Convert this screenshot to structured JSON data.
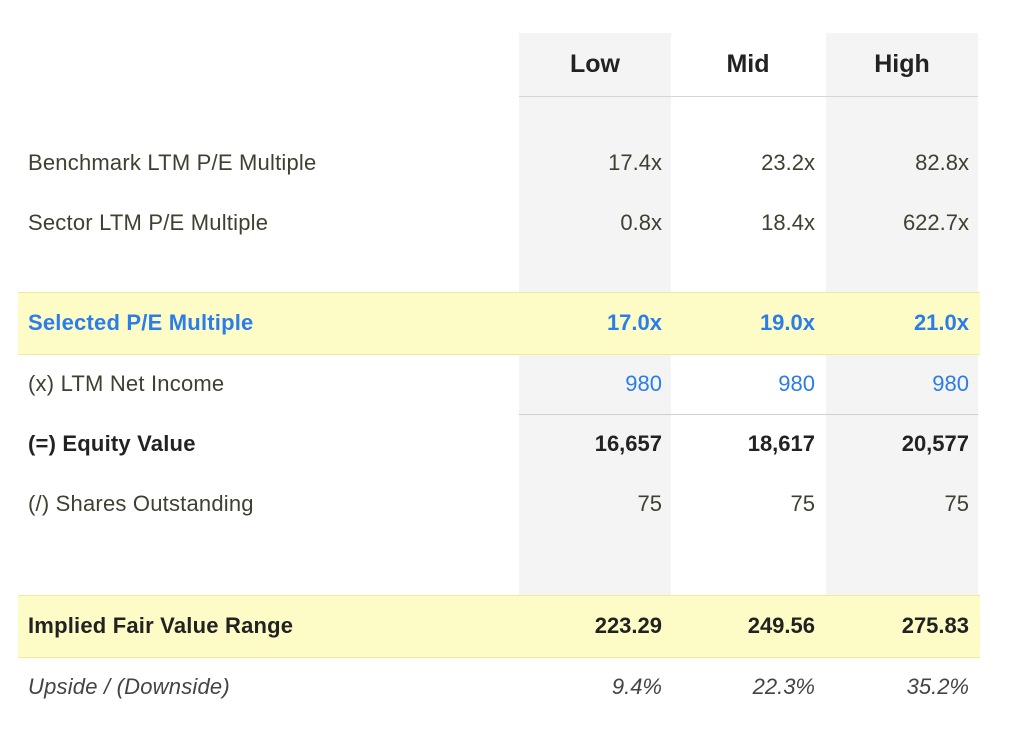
{
  "columns": {
    "low": "Low",
    "mid": "Mid",
    "high": "High"
  },
  "rows": {
    "benchmark": {
      "label": "Benchmark LTM P/E Multiple",
      "low": "17.4x",
      "mid": "23.2x",
      "high": "82.8x"
    },
    "sector": {
      "label": "Sector LTM P/E Multiple",
      "low": "0.8x",
      "mid": "18.4x",
      "high": "622.7x"
    },
    "selected": {
      "label": "Selected P/E Multiple",
      "low": "17.0x",
      "mid": "19.0x",
      "high": "21.0x"
    },
    "net_income": {
      "label": "(x) LTM Net Income",
      "low": "980",
      "mid": "980",
      "high": "980"
    },
    "equity": {
      "label": "(=) Equity Value",
      "low": "16,657",
      "mid": "18,617",
      "high": "20,577"
    },
    "shares": {
      "label": "(/) Shares Outstanding",
      "low": "75",
      "mid": "75",
      "high": "75"
    },
    "implied": {
      "label": "Implied Fair Value Range",
      "low": "223.29",
      "mid": "249.56",
      "high": "275.83"
    },
    "upside": {
      "label": "Upside / (Downside)",
      "low": "9.4%",
      "mid": "22.3%",
      "high": "35.2%"
    }
  },
  "colors": {
    "highlight_band": "#fdfcc7",
    "accent_blue": "#2b7de9",
    "column_shade": "#f4f4f4"
  }
}
